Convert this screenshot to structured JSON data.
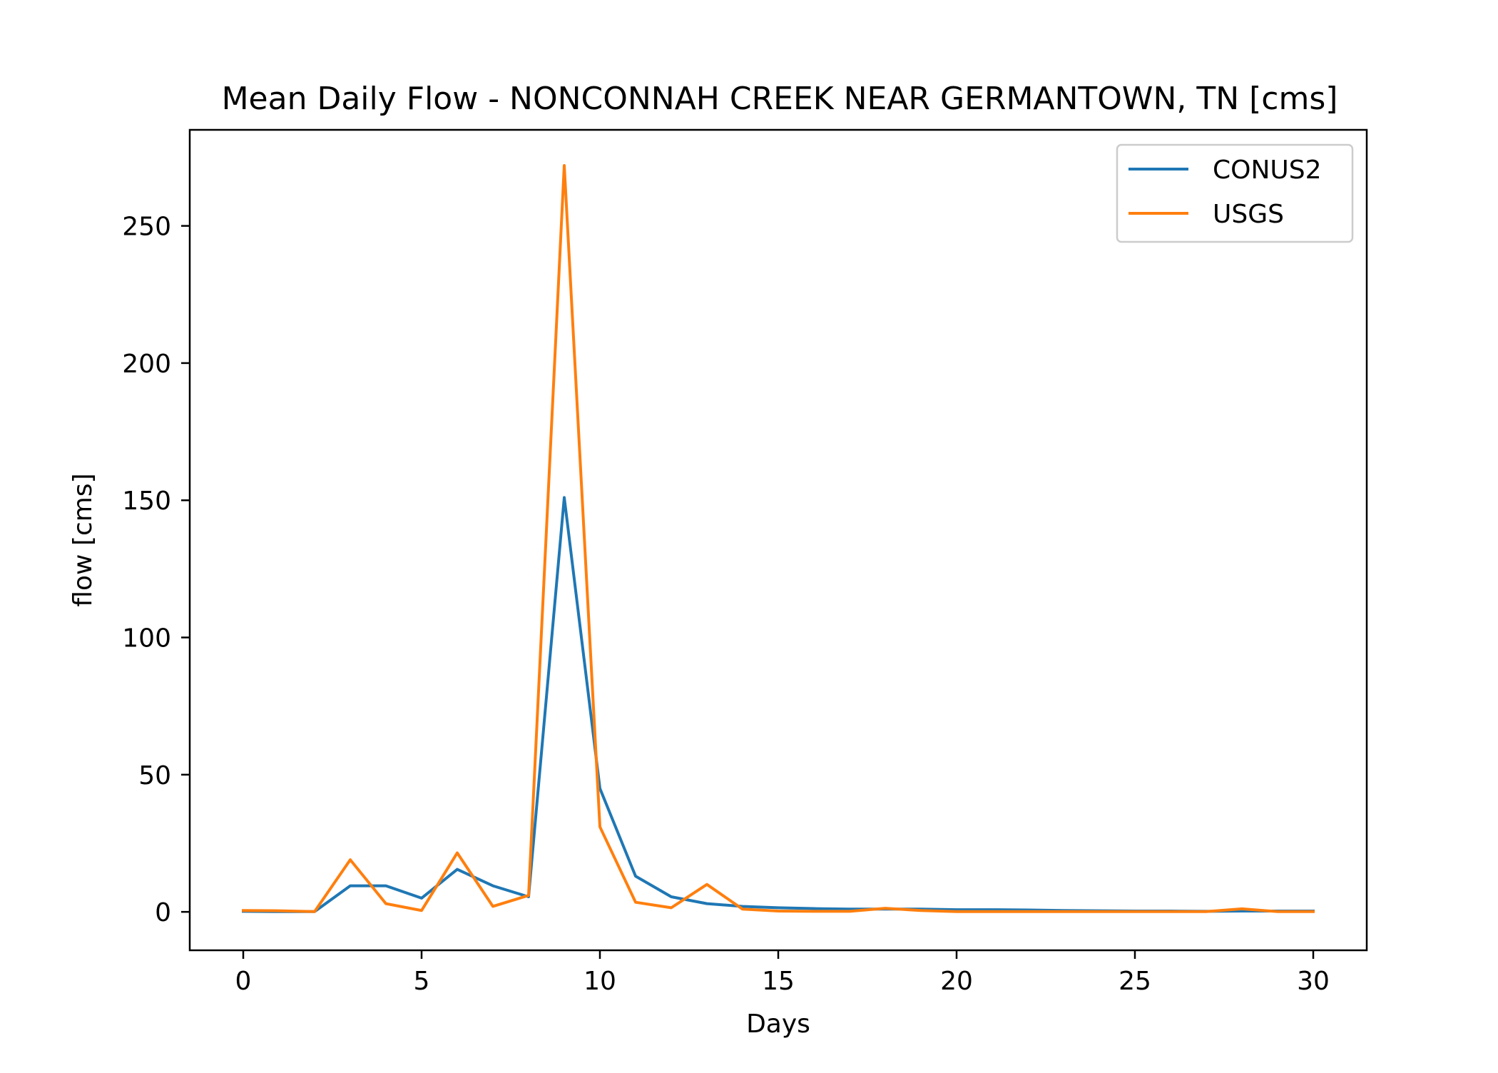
{
  "chart_data": {
    "type": "line",
    "title": "Mean Daily Flow - NONCONNAH CREEK NEAR GERMANTOWN, TN [cms]",
    "xlabel": "Days",
    "ylabel": "flow [cms]",
    "xlim": [
      -1.5,
      31.5
    ],
    "ylim": [
      -14,
      285
    ],
    "xticks": [
      0,
      5,
      10,
      15,
      20,
      25,
      30
    ],
    "yticks": [
      0,
      50,
      100,
      150,
      200,
      250
    ],
    "grid": false,
    "legend_position": "top-right",
    "x": [
      0,
      1,
      2,
      3,
      4,
      5,
      6,
      7,
      8,
      9,
      10,
      11,
      12,
      13,
      14,
      15,
      16,
      17,
      18,
      19,
      20,
      21,
      22,
      23,
      24,
      25,
      26,
      27,
      28,
      29,
      30
    ],
    "series": [
      {
        "name": "CONUS2",
        "color": "#1f77b4",
        "values": [
          0.2,
          0.1,
          0.1,
          9.5,
          9.5,
          5,
          15.5,
          9.5,
          5.5,
          151,
          45,
          13,
          5.5,
          3,
          2,
          1.5,
          1.2,
          1,
          1,
          1,
          0.8,
          0.8,
          0.7,
          0.5,
          0.4,
          0.3,
          0.3,
          0.2,
          0.3,
          0.3,
          0.3
        ]
      },
      {
        "name": "USGS",
        "color": "#ff7f0e",
        "values": [
          0.5,
          0.4,
          0.1,
          19,
          3,
          0.5,
          21.5,
          2,
          6,
          272,
          31,
          3.5,
          1.5,
          10,
          1,
          0.3,
          0.2,
          0.2,
          1.3,
          0.5,
          0.1,
          0.1,
          0.1,
          0.1,
          0.1,
          0.1,
          0.1,
          0.1,
          1.1,
          0.1,
          0.1
        ]
      }
    ]
  }
}
